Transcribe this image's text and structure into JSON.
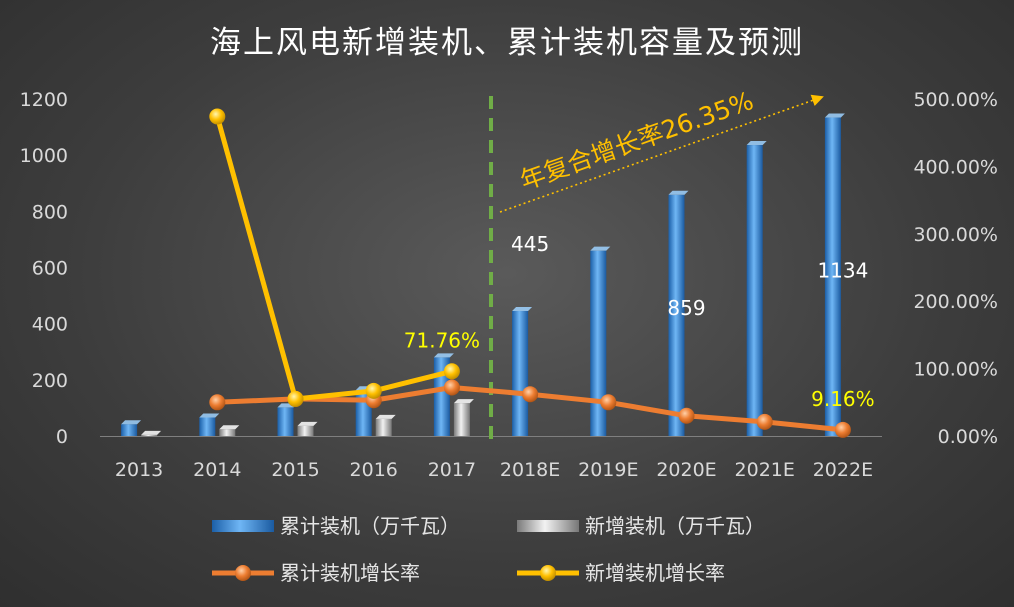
{
  "chart_data": {
    "type": "bar",
    "title": "海上风电新增装机、累计装机容量及预测",
    "categories": [
      "2013",
      "2014",
      "2015",
      "2016",
      "2017",
      "2018E",
      "2019E",
      "2020E",
      "2021E",
      "2022E"
    ],
    "ylim": [
      0,
      1200
    ],
    "y_ticks": [
      "0",
      "200",
      "400",
      "600",
      "800",
      "1000",
      "1200"
    ],
    "y2lim": [
      0,
      500
    ],
    "y2_ticks": [
      "0.00%",
      "100.00%",
      "200.00%",
      "300.00%",
      "400.00%",
      "500.00%"
    ],
    "grid": false,
    "legend_position": "bottom",
    "series": [
      {
        "name": "累计装机（万千瓦）",
        "type": "bar",
        "axis": "left",
        "color": "#2e86d6",
        "values": [
          42,
          66,
          102,
          163,
          280,
          445,
          660,
          859,
          1036,
          1134
        ]
      },
      {
        "name": "新增装机（万千瓦）",
        "type": "bar",
        "axis": "left",
        "color": "#bfbfbf",
        "values": [
          4,
          24,
          36,
          61,
          117,
          null,
          null,
          null,
          null,
          null
        ]
      },
      {
        "name": "累计装机增长率",
        "type": "line",
        "axis": "right",
        "color": "#ed7d31",
        "values": [
          null,
          50,
          55,
          53,
          72,
          62,
          50,
          30,
          21,
          9.16
        ]
      },
      {
        "name": "新增装机增长率",
        "type": "line",
        "axis": "right",
        "color": "#ffc000",
        "values": [
          null,
          474,
          55,
          67,
          96,
          null,
          null,
          null,
          null,
          null
        ]
      }
    ],
    "data_labels": [
      {
        "text": "445",
        "color": "#ffffff"
      },
      {
        "text": "859",
        "color": "#ffffff"
      },
      {
        "text": "1134",
        "color": "#ffffff"
      },
      {
        "text": "71.76%",
        "color": "#ffff00"
      },
      {
        "text": "9.16%",
        "color": "#ffff00"
      }
    ],
    "annotation": {
      "text": "年复合增长率26.35%",
      "color": "#ffc000"
    },
    "forecast_divider": {
      "between": [
        "2017",
        "2018E"
      ],
      "color": "#70ad47",
      "style": "dashed"
    }
  }
}
